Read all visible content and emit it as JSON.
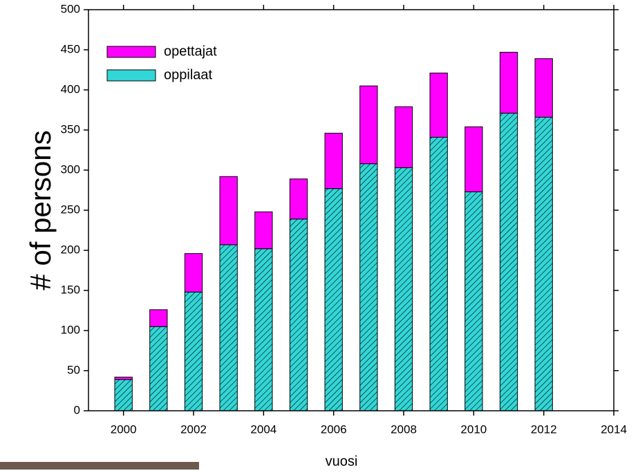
{
  "chart_data": {
    "type": "bar",
    "stacked": true,
    "x_label": "vuosi",
    "y_label": "# of persons",
    "x": [
      2000,
      2001,
      2002,
      2003,
      2004,
      2005,
      2006,
      2007,
      2008,
      2009,
      2010,
      2011,
      2012
    ],
    "series": [
      {
        "name": "oppilaat",
        "color": "#33d6d6",
        "values": [
          39,
          105,
          148,
          207,
          202,
          239,
          277,
          308,
          303,
          341,
          273,
          371,
          366
        ]
      },
      {
        "name": "opettajat",
        "color": "#ff00ff",
        "values": [
          3,
          21,
          48,
          85,
          46,
          50,
          69,
          97,
          76,
          80,
          81,
          76,
          73
        ]
      }
    ],
    "xlim": [
      1999,
      2014
    ],
    "xticks": [
      2000,
      2002,
      2004,
      2006,
      2008,
      2010,
      2012,
      2014
    ],
    "ylim": [
      0,
      500
    ],
    "yticks": [
      0,
      50,
      100,
      150,
      200,
      250,
      300,
      350,
      400,
      450,
      500
    ],
    "legend": "upper left",
    "grid": false
  }
}
